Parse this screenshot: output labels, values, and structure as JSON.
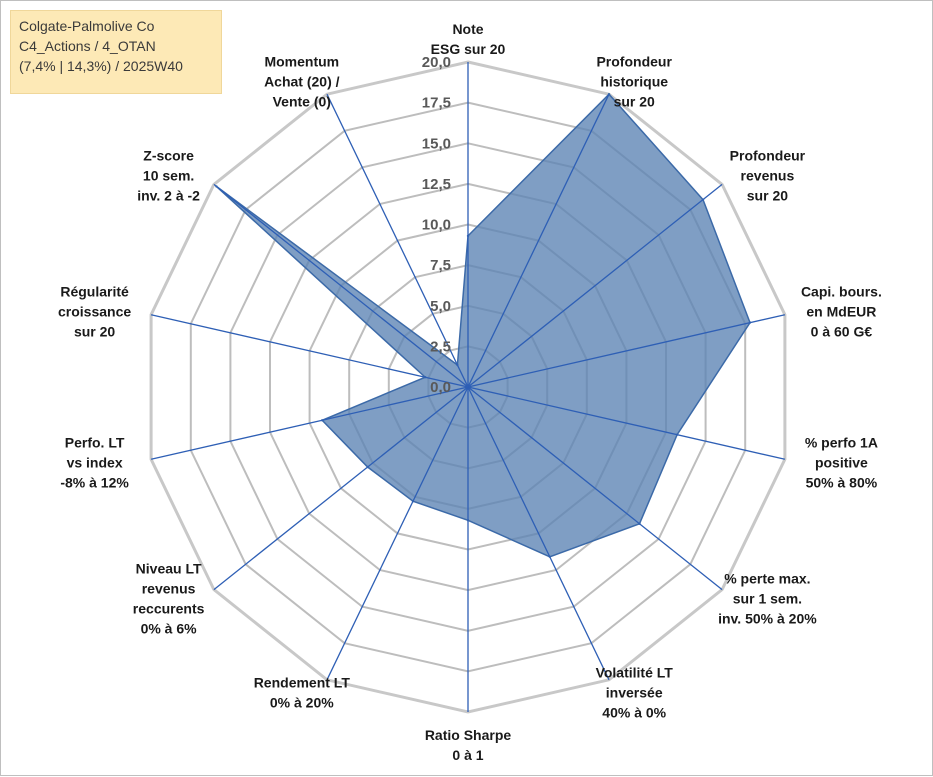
{
  "info_box": {
    "line1": "Colgate-Palmolive Co",
    "line2": "C4_Actions / 4_OTAN",
    "line3": "(7,4% | 14,3%) / 2025W40"
  },
  "chart_data": {
    "type": "radar",
    "title": "",
    "rlim": [
      0,
      20
    ],
    "r_ticks": [
      "0,0",
      "2,5",
      "5,0",
      "7,5",
      "10,0",
      "12,5",
      "15,0",
      "17,5",
      "20,0"
    ],
    "axes": [
      {
        "label": [
          "Note",
          "ESG sur 20"
        ]
      },
      {
        "label": [
          "Profondeur",
          "historique",
          "sur 20"
        ]
      },
      {
        "label": [
          "Profondeur",
          "revenus",
          "sur 20"
        ]
      },
      {
        "label": [
          "Capi. bours.",
          "en MdEUR",
          "0 à 60 G€"
        ]
      },
      {
        "label": [
          "% perfo 1A",
          "positive",
          "50% à 80%"
        ]
      },
      {
        "label": [
          "% perte max.",
          "sur 1 sem.",
          "inv. 50% à 20%"
        ]
      },
      {
        "label": [
          "Volatilité LT",
          "inversée",
          "40% à 0%"
        ]
      },
      {
        "label": [
          "Ratio Sharpe",
          "0 à 1"
        ]
      },
      {
        "label": [
          "Rendement LT",
          "0% à 20%"
        ]
      },
      {
        "label": [
          "Niveau LT",
          "revenus",
          "reccurents",
          "0% à 6%"
        ]
      },
      {
        "label": [
          "Perfo. LT",
          "vs index",
          "-8% à 12%"
        ]
      },
      {
        "label": [
          "Régularité",
          "croissance",
          "sur 20"
        ]
      },
      {
        "label": [
          "Z-score",
          "10 sem.",
          "inv. 2 à -2"
        ]
      },
      {
        "label": [
          "Momentum",
          "Achat (20) /",
          "Vente (0)"
        ]
      }
    ],
    "series": [
      {
        "values": [
          9.3,
          20.0,
          18.5,
          17.8,
          13.2,
          13.5,
          11.6,
          8.2,
          7.8,
          7.9,
          9.2,
          2.7,
          19.8,
          1.5
        ]
      }
    ],
    "colors": {
      "fill": "#5b83b4",
      "fill_opacity": 0.78,
      "outline": "#3c6aa8",
      "spoke": "#2e5fb5",
      "grid": "#bdbdbd",
      "grid_outer": "#c8c8c8"
    },
    "grid": true
  }
}
